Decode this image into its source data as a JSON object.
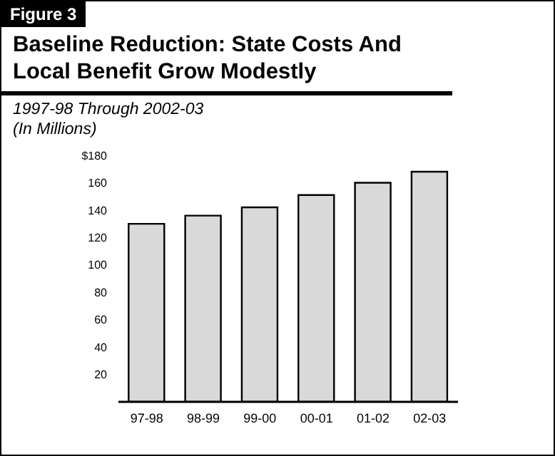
{
  "chart_data": {
    "type": "bar",
    "title": "Baseline Reduction: State Costs And Local Benefit Grow Modestly",
    "subtitle": "1997-98 Through 2002-03",
    "ylabel": "(In Millions)",
    "annotations": [
      "Figure 3"
    ],
    "categories": [
      "97-98",
      "98-99",
      "99-00",
      "00-01",
      "01-02",
      "02-03"
    ],
    "values": [
      130,
      136,
      142,
      151,
      160,
      168
    ],
    "color": "#d9d9d9",
    "ylim": [
      0,
      180
    ],
    "yticks": [
      20,
      40,
      60,
      80,
      100,
      120,
      140,
      160,
      {
        "value": 180,
        "label": "$180"
      }
    ],
    "grid": false
  }
}
